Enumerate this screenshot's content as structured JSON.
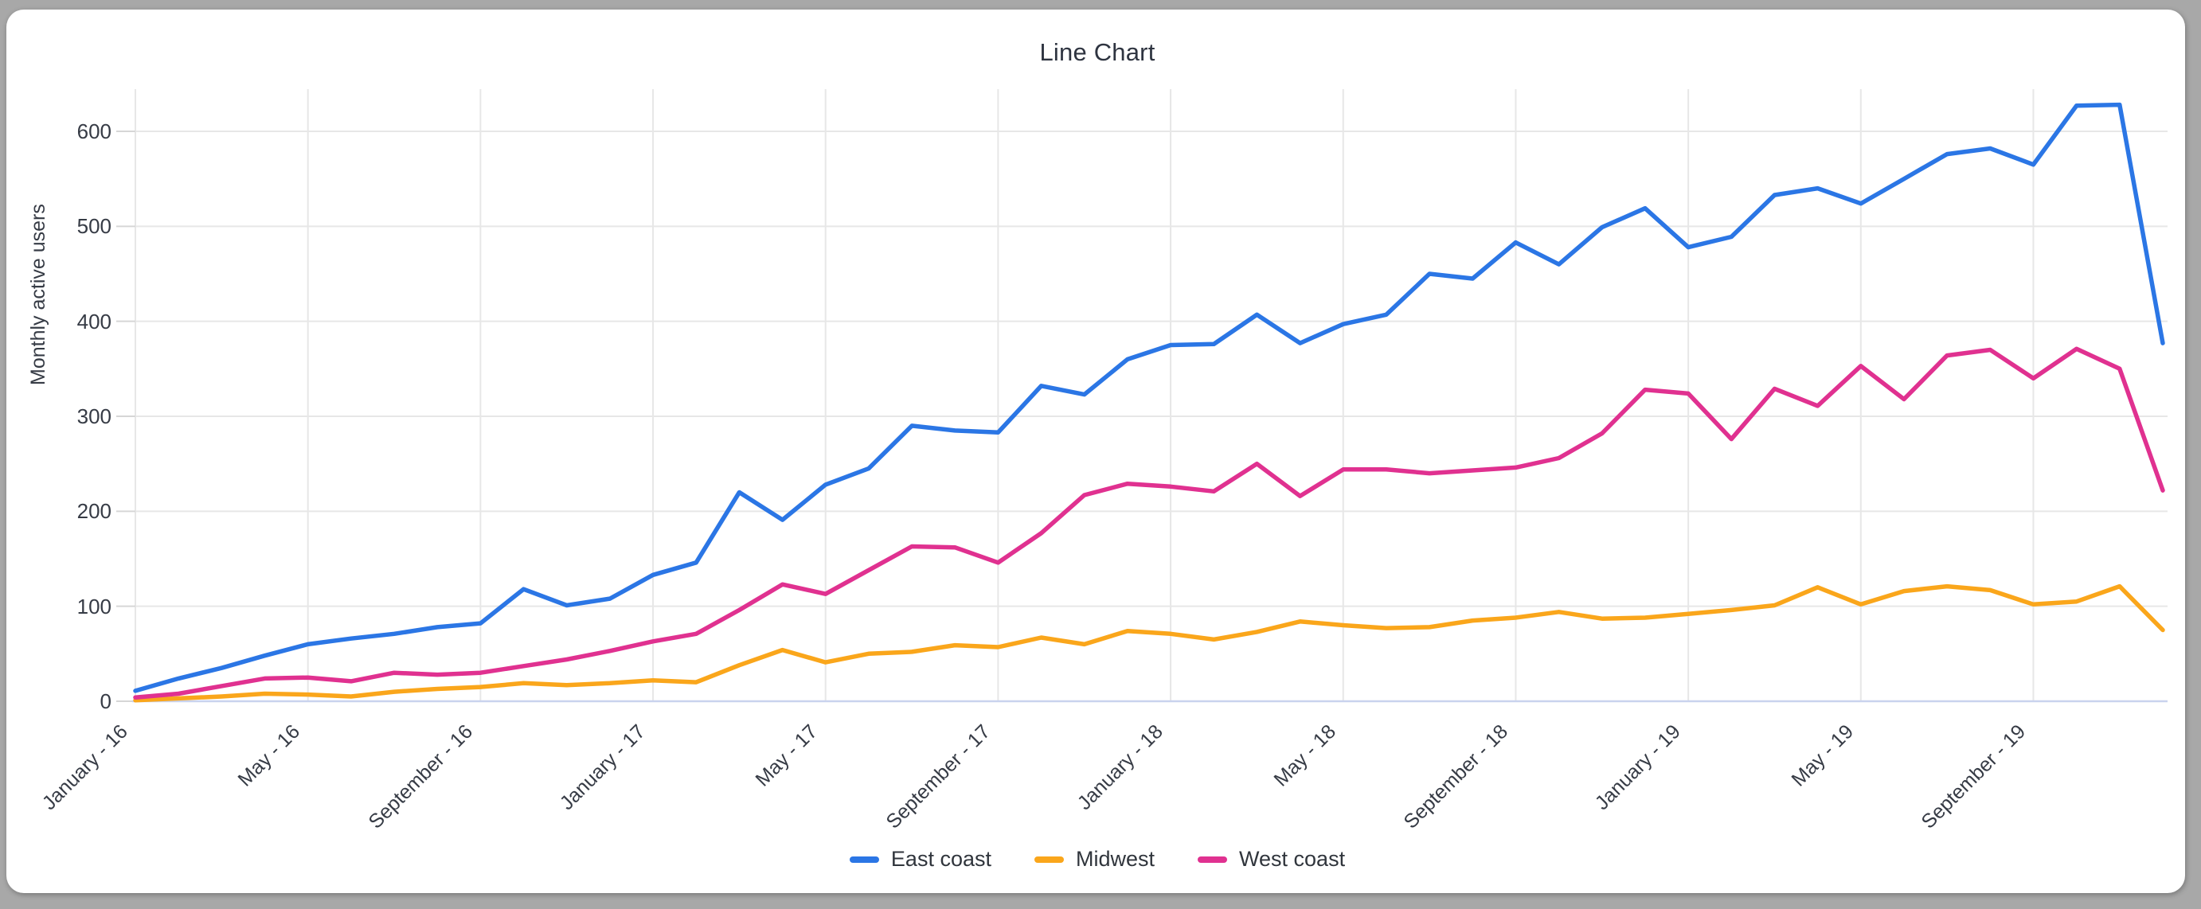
{
  "window": {
    "frame_color": "#a8a8a8",
    "card_background": "#ffffff"
  },
  "styles": {
    "grid_color": "#e7e7e7",
    "axis_line_color": "#c9d3ee",
    "tick_color": "#d6d6d6",
    "text_color": "#363b45",
    "title_color": "#2e3440"
  },
  "chart_data": {
    "type": "line",
    "title": "Line Chart",
    "xlabel": "",
    "ylabel": "Monthly active users",
    "ylim": [
      0,
      650
    ],
    "grid": true,
    "legend_position": "bottom",
    "y_ticks": [
      0,
      100,
      200,
      300,
      400,
      500,
      600
    ],
    "x_tick_every": 4,
    "x_tick_labels": [
      "January - 16",
      "May - 16",
      "September - 16",
      "January - 17",
      "May - 17",
      "September - 17",
      "January - 18",
      "May - 18",
      "September - 18",
      "January - 19",
      "May - 19",
      "September - 19"
    ],
    "categories": [
      "January - 16",
      "February - 16",
      "March - 16",
      "April - 16",
      "May - 16",
      "June - 16",
      "July - 16",
      "August - 16",
      "September - 16",
      "October - 16",
      "November - 16",
      "December - 16",
      "January - 17",
      "February - 17",
      "March - 17",
      "April - 17",
      "May - 17",
      "June - 17",
      "July - 17",
      "August - 17",
      "September - 17",
      "October - 17",
      "November - 17",
      "December - 17",
      "January - 18",
      "February - 18",
      "March - 18",
      "April - 18",
      "May - 18",
      "June - 18",
      "July - 18",
      "August - 18",
      "September - 18",
      "October - 18",
      "November - 18",
      "December - 18",
      "January - 19",
      "February - 19",
      "March - 19",
      "April - 19",
      "May - 19",
      "June - 19",
      "July - 19",
      "August - 19",
      "September - 19",
      "October - 19",
      "November - 19",
      "December - 19"
    ],
    "series": [
      {
        "name": "East coast",
        "color": "#2b76e5",
        "values": [
          11,
          24,
          35,
          48,
          60,
          66,
          71,
          78,
          82,
          118,
          101,
          108,
          133,
          146,
          220,
          191,
          228,
          245,
          290,
          285,
          283,
          332,
          323,
          360,
          375,
          376,
          407,
          377,
          397,
          407,
          450,
          445,
          483,
          460,
          499,
          519,
          478,
          489,
          533,
          540,
          524,
          550,
          576,
          582,
          565,
          627,
          628,
          377
        ]
      },
      {
        "name": "Midwest",
        "color": "#faa61b",
        "values": [
          1,
          3,
          5,
          8,
          7,
          5,
          10,
          13,
          15,
          19,
          17,
          19,
          22,
          20,
          38,
          54,
          41,
          50,
          52,
          59,
          57,
          67,
          60,
          74,
          71,
          65,
          73,
          84,
          80,
          77,
          78,
          85,
          88,
          94,
          87,
          88,
          92,
          96,
          101,
          120,
          102,
          116,
          121,
          117,
          102,
          105,
          121,
          75
        ]
      },
      {
        "name": "West coast",
        "color": "#e03190",
        "values": [
          4,
          8,
          16,
          24,
          25,
          21,
          30,
          28,
          30,
          37,
          44,
          53,
          63,
          71,
          96,
          123,
          113,
          138,
          163,
          162,
          146,
          177,
          217,
          229,
          226,
          221,
          250,
          216,
          244,
          244,
          240,
          243,
          246,
          256,
          282,
          328,
          324,
          276,
          329,
          311,
          353,
          318,
          364,
          370,
          340,
          371,
          350,
          222
        ]
      }
    ]
  }
}
